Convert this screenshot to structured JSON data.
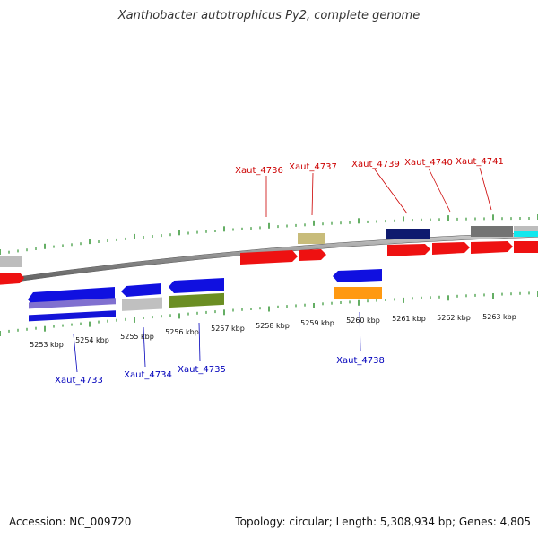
{
  "title": "Xanthobacter autotrophicus Py2, complete genome",
  "footer": {
    "accession": "Accession: NC_009720",
    "topology": "Topology: circular; Length: 5,308,934 bp; Genes: 4,805"
  },
  "colors": {
    "forward_label": "#cc0000",
    "reverse_label": "#0000bb",
    "tick": "#228b22",
    "backbone": "#8a8a8a"
  },
  "scale": {
    "unit": "kbp",
    "labels": [
      "5253 kbp",
      "5254 kbp",
      "5255 kbp",
      "5256 kbp",
      "5257 kbp",
      "5258 kbp",
      "5259 kbp",
      "5260 kbp",
      "5261 kbp",
      "5262 kbp",
      "5263 kbp"
    ]
  },
  "gene_labels": {
    "forward": [
      "Xaut_4736",
      "Xaut_4737",
      "Xaut_4739",
      "Xaut_4740",
      "Xaut_4741"
    ],
    "reverse": [
      "Xaut_4733",
      "Xaut_4734",
      "Xaut_4735",
      "Xaut_4738"
    ]
  }
}
